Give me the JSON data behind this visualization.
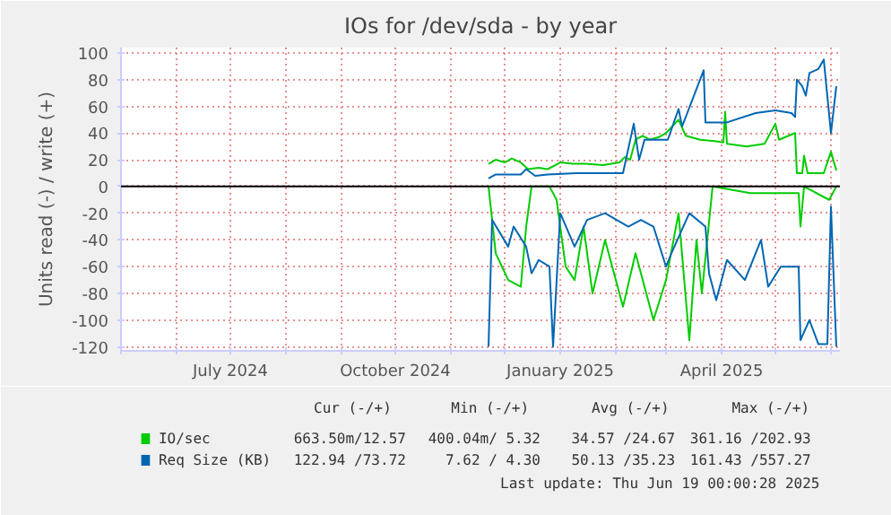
{
  "chart_data": {
    "type": "line",
    "title": "IOs for /dev/sda - by year",
    "ylabel": "Units read (-) / write (+)",
    "xlim": [
      "2024-05-01",
      "2025-06-06"
    ],
    "xticks": [
      {
        "value": "2024-05-01",
        "label": null
      },
      {
        "value": "2024-06-01",
        "label": null
      },
      {
        "value": "2024-07-01",
        "label": "July 2024"
      },
      {
        "value": "2024-08-01",
        "label": null
      },
      {
        "value": "2024-09-01",
        "label": null
      },
      {
        "value": "2024-10-01",
        "label": "October 2024"
      },
      {
        "value": "2024-11-01",
        "label": null
      },
      {
        "value": "2024-12-01",
        "label": null
      },
      {
        "value": "2025-01-01",
        "label": "January 2025"
      },
      {
        "value": "2025-02-01",
        "label": null
      },
      {
        "value": "2025-03-01",
        "label": null
      },
      {
        "value": "2025-04-01",
        "label": "April 2025"
      },
      {
        "value": "2025-05-01",
        "label": null
      },
      {
        "value": "2025-06-01",
        "label": null
      }
    ],
    "ylim": [
      -123,
      104
    ],
    "yticks": [
      -120,
      -100,
      -80,
      -60,
      -40,
      -20,
      0,
      20,
      40,
      60,
      80,
      100
    ],
    "grid": true,
    "legend": "bottom",
    "ref_lines": [
      {
        "axis": "y",
        "value": 0,
        "color": "#000000"
      }
    ],
    "series": [
      {
        "name": "IO/sec",
        "color": "#00cc00",
        "x": [
          "2024-11-22",
          "2024-11-26",
          "2024-12-01",
          "2024-12-05",
          "2024-12-10",
          "2024-12-14",
          "2024-12-20",
          "2024-12-25",
          "2025-01-01",
          "2025-01-08",
          "2025-01-15",
          "2025-01-25",
          "2025-02-03",
          "2025-02-06",
          "2025-02-09",
          "2025-02-12",
          "2025-02-16",
          "2025-02-20",
          "2025-02-25",
          "2025-03-01",
          "2025-03-08",
          "2025-03-12",
          "2025-03-20",
          "2025-03-28",
          "2025-04-02",
          "2025-04-03",
          "2025-04-04",
          "2025-04-15",
          "2025-04-25",
          "2025-05-01",
          "2025-05-03",
          "2025-05-12",
          "2025-05-13",
          "2025-05-16",
          "2025-05-17",
          "2025-05-19",
          "2025-05-28",
          "2025-06-01",
          "2025-06-04"
        ],
        "values": [
          17,
          20,
          18,
          21,
          18,
          13,
          14,
          13,
          18,
          17,
          17,
          16,
          18,
          22,
          20,
          35,
          38,
          35,
          37,
          40,
          50,
          38,
          35,
          34,
          33,
          56,
          32,
          30,
          32,
          47,
          35,
          40,
          10,
          10,
          23,
          10,
          10,
          26,
          12
        ]
      },
      {
        "color": "#00cc00",
        "x": [
          "2024-11-22",
          "2024-11-26",
          "2024-12-03",
          "2024-12-10",
          "2024-12-13",
          "2024-12-16",
          "2024-12-26",
          "2024-12-30",
          "2025-01-04",
          "2025-01-09",
          "2025-01-14",
          "2025-01-19",
          "2025-01-26",
          "2025-02-05",
          "2025-02-12",
          "2025-02-22",
          "2025-03-01",
          "2025-03-08",
          "2025-03-14",
          "2025-03-18",
          "2025-03-21",
          "2025-03-27",
          "2025-04-17",
          "2025-05-14",
          "2025-05-15",
          "2025-05-17",
          "2025-05-31",
          "2025-06-04"
        ],
        "values": [
          0,
          -50,
          -70,
          -75,
          -30,
          0,
          0,
          -10,
          -60,
          -70,
          -30,
          -80,
          -40,
          -90,
          -50,
          -100,
          -70,
          -20,
          -115,
          -40,
          -80,
          0,
          -5,
          -5,
          -30,
          0,
          -10,
          0
        ]
      },
      {
        "name": "Req Size (KB)",
        "color": "#0066b3",
        "x": [
          "2024-11-22",
          "2024-11-26",
          "2024-12-10",
          "2024-12-13",
          "2024-12-18",
          "2024-12-25",
          "2025-01-10",
          "2025-01-30",
          "2025-02-05",
          "2025-02-11",
          "2025-02-14",
          "2025-02-17",
          "2025-03-02",
          "2025-03-08",
          "2025-03-10",
          "2025-03-22",
          "2025-03-23",
          "2025-04-04",
          "2025-04-20",
          "2025-05-01",
          "2025-05-10",
          "2025-05-12",
          "2025-05-13",
          "2025-05-16",
          "2025-05-18",
          "2025-05-20",
          "2025-05-25",
          "2025-05-28",
          "2025-06-01",
          "2025-06-04"
        ],
        "values": [
          6,
          9,
          9,
          13,
          8,
          9,
          10,
          10,
          10,
          47,
          20,
          35,
          35,
          58,
          45,
          87,
          48,
          48,
          55,
          57,
          55,
          52,
          80,
          75,
          68,
          85,
          88,
          95,
          40,
          75
        ]
      },
      {
        "color": "#0066b3",
        "x": [
          "2024-11-22",
          "2024-11-24",
          "2024-12-03",
          "2024-12-06",
          "2024-12-13",
          "2024-12-16",
          "2024-12-20",
          "2024-12-26",
          "2024-12-28",
          "2025-01-01",
          "2025-01-09",
          "2025-01-16",
          "2025-01-26",
          "2025-02-08",
          "2025-02-15",
          "2025-02-22",
          "2025-03-01",
          "2025-03-04",
          "2025-03-14",
          "2025-03-23",
          "2025-03-25",
          "2025-03-29",
          "2025-04-04",
          "2025-04-14",
          "2025-04-23",
          "2025-04-27",
          "2025-05-04",
          "2025-05-14",
          "2025-05-15",
          "2025-05-20",
          "2025-05-25",
          "2025-05-30",
          "2025-06-01",
          "2025-06-04"
        ],
        "values": [
          -120,
          -25,
          -45,
          -30,
          -45,
          -65,
          -55,
          -60,
          -120,
          -20,
          -45,
          -25,
          -20,
          -30,
          -25,
          -30,
          -60,
          -50,
          -20,
          -30,
          -65,
          -85,
          -55,
          -70,
          -40,
          -75,
          -60,
          -60,
          -115,
          -100,
          -118,
          -118,
          -15,
          -120
        ]
      }
    ],
    "annotations": [
      "Cur (-/+)",
      "Min (-/+)",
      "Avg (-/+)",
      "Max (-/+)",
      "663.50m/12.57",
      "400.04m/ 5.32",
      "34.57 /24.67",
      "361.16 /202.93",
      "122.94 /73.72",
      "7.62 / 4.30",
      "50.13 /35.23",
      "161.43 /557.27",
      "Last update: Thu Jun 19 00:00:28 2025"
    ]
  }
}
